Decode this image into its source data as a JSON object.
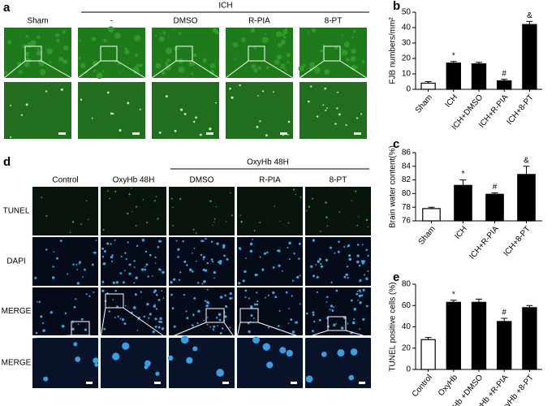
{
  "figure": {
    "panel_a": {
      "label": "a",
      "group": "ICH",
      "columns": [
        "Sham",
        "-",
        "DMSO",
        "R-PIA",
        "8-PT"
      ]
    },
    "panel_d": {
      "label": "d",
      "group": "OxyHb 48H",
      "columns": [
        "Control",
        "OxyHb 48H",
        "DMSO",
        "R-PIA",
        "8-PT"
      ],
      "rows": [
        "TUNEL",
        "DAPI",
        "MERGE",
        "MERGE"
      ]
    }
  },
  "chart_data": [
    {
      "type": "bar",
      "panel_label": "b",
      "y_label": "FJB numbers/mm²",
      "categories": [
        "Sham",
        "ICH",
        "ICH+DMSO",
        "ICH+R-PIA",
        "ICH+8-PT"
      ],
      "values": [
        4,
        17,
        16.5,
        5.5,
        42
      ],
      "errors": [
        1,
        1,
        1,
        1,
        2
      ],
      "value_annotations": [
        null,
        "*",
        null,
        "#",
        "&"
      ],
      "bar_colors": [
        "#ffffff",
        "#000000",
        "#000000",
        "#000000",
        "#000000"
      ],
      "ylim": [
        0,
        50
      ],
      "yticks": [
        0,
        10,
        20,
        30,
        40,
        50
      ],
      "grid": false
    },
    {
      "type": "bar",
      "panel_label": "c",
      "y_label": "Brain water content(%)",
      "categories": [
        "Sham",
        "ICH",
        "ICH+R-PIA",
        "ICH+8-PT"
      ],
      "values": [
        77.8,
        81.2,
        79.9,
        82.8
      ],
      "errors": [
        0.2,
        0.8,
        0.2,
        1.2
      ],
      "value_annotations": [
        null,
        "*",
        "#",
        "&"
      ],
      "bar_colors": [
        "#ffffff",
        "#000000",
        "#000000",
        "#000000"
      ],
      "ylim": [
        76,
        86
      ],
      "yticks": [
        76,
        78,
        80,
        82,
        84,
        86
      ],
      "grid": false
    },
    {
      "type": "bar",
      "panel_label": "e",
      "y_label": "TUNEL positive cells (%)",
      "categories": [
        "Control",
        "OxyHb",
        "OxyHb +DMSO",
        "OxyHb +R-PIA",
        "OxyHb +8-PT"
      ],
      "values": [
        28,
        63,
        63,
        45,
        58
      ],
      "errors": [
        2,
        2,
        3,
        3,
        2
      ],
      "value_annotations": [
        null,
        "*",
        null,
        "#",
        null
      ],
      "bar_colors": [
        "#ffffff",
        "#000000",
        "#000000",
        "#000000",
        "#000000"
      ],
      "ylim": [
        0,
        80
      ],
      "yticks": [
        0,
        20,
        40,
        60,
        80
      ],
      "grid": false
    }
  ]
}
